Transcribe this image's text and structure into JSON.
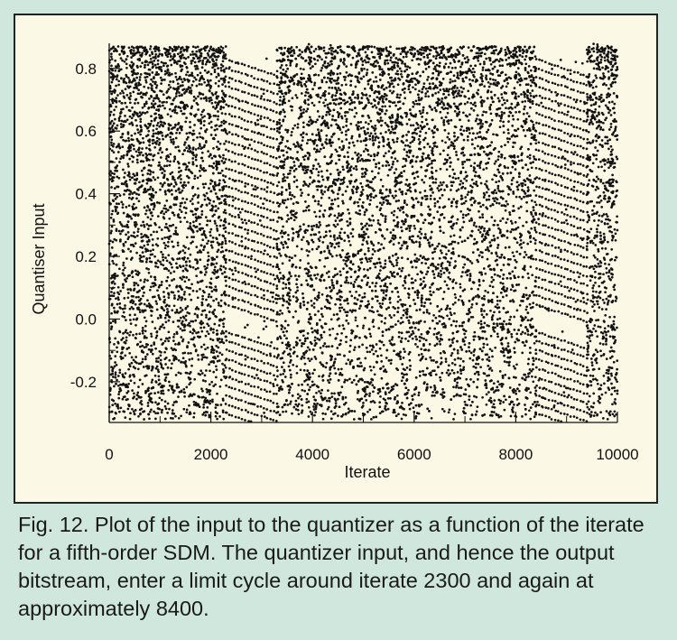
{
  "chart_data": {
    "type": "scatter",
    "title": "",
    "xlabel": "Iterate",
    "ylabel": "Quantiser Input",
    "xlim": [
      0,
      10000
    ],
    "ylim": [
      -0.33,
      0.88
    ],
    "xticks": [
      0,
      2000,
      4000,
      6000,
      8000,
      10000
    ],
    "xtick_labels": [
      "0",
      "2000",
      "4000",
      "6000",
      "8000",
      "10000"
    ],
    "yticks": [
      -0.2,
      0.0,
      0.2,
      0.4,
      0.6,
      0.8
    ],
    "ytick_labels": [
      "-0.2",
      "0.0",
      "0.2",
      "0.4",
      "0.6",
      "0.8"
    ],
    "grid": false,
    "marker_color": "#111111",
    "regions": [
      {
        "kind": "chaotic",
        "x_start": 0,
        "x_end": 2300
      },
      {
        "kind": "limit-cycle",
        "x_start": 2300,
        "x_end": 3300
      },
      {
        "kind": "chaotic",
        "x_start": 3300,
        "x_end": 8400
      },
      {
        "kind": "limit-cycle",
        "x_start": 8400,
        "x_end": 9400
      },
      {
        "kind": "chaotic",
        "x_start": 9400,
        "x_end": 10000
      }
    ]
  },
  "caption": "Fig. 12. Plot of the input to the quantizer as a function of the iterate for a fifth-order SDM. The quantizer input, and hence the output bitstream, enter a limit cycle around iterate 2300 and again at approximately 8400."
}
